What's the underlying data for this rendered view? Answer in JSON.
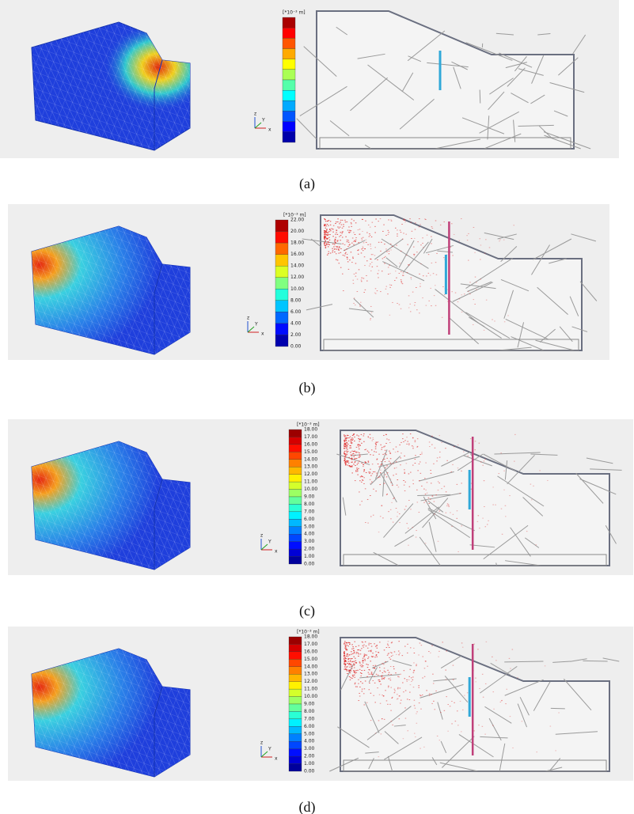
{
  "panels": [
    {
      "caption": "(a)",
      "legend": {
        "unit": "[*10⁻³ m]"
      },
      "axes": {
        "z": "z",
        "y": "Y",
        "x": "x"
      }
    },
    {
      "caption": "(b)",
      "legend": {
        "unit": "[*10⁻³ m]",
        "ticks": [
          "22.00",
          "20.00",
          "18.00",
          "16.00",
          "14.00",
          "12.00",
          "10.00",
          "8.00",
          "6.00",
          "4.00",
          "2.00",
          "0.00"
        ]
      },
      "axes": {
        "z": "z",
        "y": "Y",
        "x": "x"
      }
    },
    {
      "caption": "(c)",
      "legend": {
        "unit": "[*10⁻³ m]",
        "ticks": [
          "18.00",
          "17.00",
          "16.00",
          "15.00",
          "14.00",
          "13.00",
          "12.00",
          "11.00",
          "10.00",
          "9.00",
          "8.00",
          "7.00",
          "6.00",
          "5.00",
          "4.00",
          "3.00",
          "2.00",
          "1.00",
          "0.00"
        ]
      },
      "axes": {
        "z": "z",
        "y": "Y",
        "x": "x"
      }
    },
    {
      "caption": "(d)",
      "legend": {
        "unit": "[*10⁻³ m]",
        "ticks": [
          "18.00",
          "17.00",
          "16.00",
          "15.00",
          "14.00",
          "13.00",
          "12.00",
          "11.00",
          "10.00",
          "9.00",
          "8.00",
          "7.00",
          "6.00",
          "5.00",
          "4.00",
          "3.00",
          "2.00",
          "1.00",
          "0.00"
        ]
      },
      "axes": {
        "z": "z",
        "y": "Y",
        "x": "x"
      }
    }
  ]
}
